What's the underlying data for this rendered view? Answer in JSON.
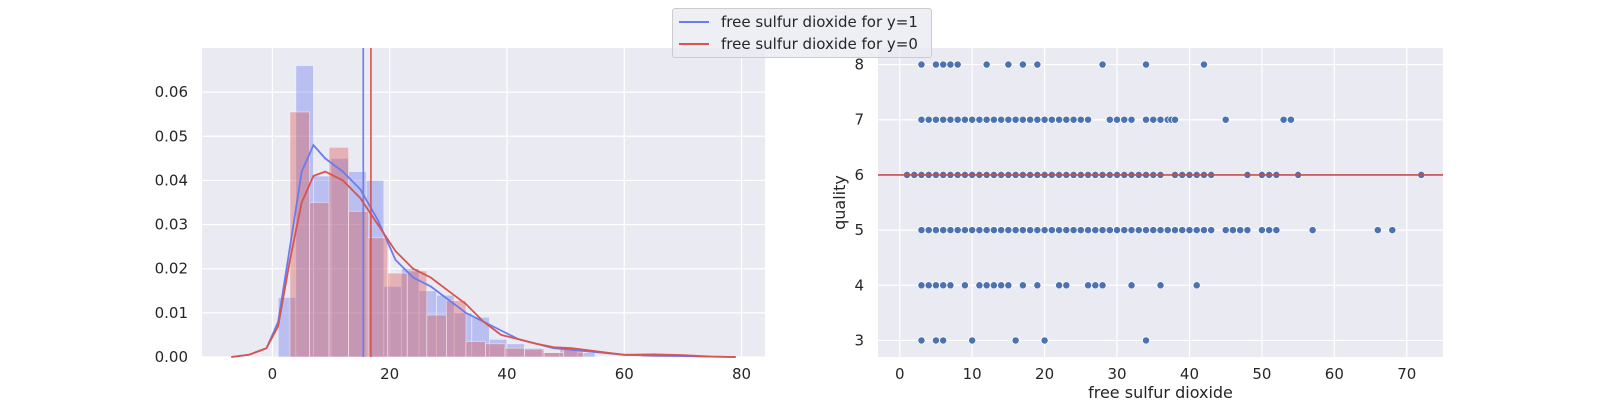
{
  "legend": {
    "items": [
      {
        "label": "free sulfur dioxide for y=1",
        "color": "#6a7cf0"
      },
      {
        "label": "free sulfur dioxide for y=0",
        "color": "#d9534f"
      }
    ]
  },
  "colors": {
    "plot_bg": "#eaeaf2",
    "grid": "#ffffff",
    "scatter": "#4c72b0"
  },
  "chart_data": [
    {
      "type": "bar",
      "subtype": "histogram-with-kde",
      "title": "",
      "xlabel": "",
      "ylabel": "",
      "xlim": [
        -12,
        84
      ],
      "ylim": [
        0,
        0.07
      ],
      "xticks": [
        0,
        20,
        40,
        60,
        80
      ],
      "yticks": [
        0.0,
        0.01,
        0.02,
        0.03,
        0.04,
        0.05,
        0.06
      ],
      "ytick_labels": [
        "0.00",
        "0.01",
        "0.02",
        "0.03",
        "0.04",
        "0.05",
        "0.06"
      ],
      "grid": true,
      "series": [
        {
          "name": "free sulfur dioxide for y=1",
          "color": "#6a7cf0",
          "bin_edges": [
            1,
            4,
            7,
            10,
            13,
            16,
            19,
            22,
            25,
            28,
            31,
            34,
            37,
            40,
            43,
            46,
            49,
            52,
            55
          ],
          "values": [
            0.0135,
            0.066,
            0.041,
            0.045,
            0.042,
            0.04,
            0.016,
            0.02,
            0.015,
            0.014,
            0.01,
            0.009,
            0.004,
            0.003,
            0.002,
            0.001,
            0.002,
            0.001
          ],
          "kde": [
            [
              -7,
              0
            ],
            [
              -4,
              0.0005
            ],
            [
              -1,
              0.002
            ],
            [
              1,
              0.008
            ],
            [
              3,
              0.025
            ],
            [
              5,
              0.042
            ],
            [
              7,
              0.048
            ],
            [
              9,
              0.045
            ],
            [
              12,
              0.042
            ],
            [
              15,
              0.038
            ],
            [
              18,
              0.031
            ],
            [
              21,
              0.022
            ],
            [
              24,
              0.018
            ],
            [
              27,
              0.016
            ],
            [
              30,
              0.013
            ],
            [
              33,
              0.01
            ],
            [
              36,
              0.008
            ],
            [
              39,
              0.006
            ],
            [
              42,
              0.004
            ],
            [
              45,
              0.003
            ],
            [
              48,
              0.002
            ],
            [
              52,
              0.0015
            ],
            [
              56,
              0.001
            ],
            [
              60,
              0.0005
            ],
            [
              65,
              0.0003
            ],
            [
              70,
              0.0002
            ],
            [
              75,
              0.0001
            ],
            [
              79,
              0
            ]
          ],
          "mean_line": 15.5
        },
        {
          "name": "free sulfur dioxide for y=0",
          "color": "#d9534f",
          "bin_edges": [
            3,
            6.33,
            9.67,
            13,
            16.33,
            19.67,
            23,
            26.33,
            29.67,
            33,
            36.33,
            39.67,
            43,
            46.33,
            49.67,
            53,
            56.33,
            59.67,
            63,
            66.33,
            69.67,
            73
          ],
          "values": [
            0.0555,
            0.035,
            0.0475,
            0.033,
            0.027,
            0.019,
            0.0195,
            0.0095,
            0.0128,
            0.0035,
            0.003,
            0.002,
            0.0018,
            0.001,
            0.0018,
            0,
            0,
            0,
            0.0005,
            0.0003,
            0.0002
          ],
          "kde": [
            [
              -7,
              0
            ],
            [
              -4,
              0.0005
            ],
            [
              -1,
              0.002
            ],
            [
              1,
              0.007
            ],
            [
              3,
              0.022
            ],
            [
              5,
              0.035
            ],
            [
              7,
              0.041
            ],
            [
              9,
              0.042
            ],
            [
              12,
              0.04
            ],
            [
              15,
              0.036
            ],
            [
              18,
              0.03
            ],
            [
              21,
              0.024
            ],
            [
              24,
              0.02
            ],
            [
              27,
              0.018
            ],
            [
              30,
              0.015
            ],
            [
              33,
              0.012
            ],
            [
              36,
              0.008
            ],
            [
              39,
              0.005
            ],
            [
              42,
              0.004
            ],
            [
              45,
              0.003
            ],
            [
              48,
              0.0022
            ],
            [
              51,
              0.002
            ],
            [
              54,
              0.0015
            ],
            [
              57,
              0.001
            ],
            [
              60,
              0.0005
            ],
            [
              65,
              0.0006
            ],
            [
              70,
              0.0004
            ],
            [
              75,
              0.0001
            ],
            [
              79,
              0
            ]
          ],
          "mean_line": 16.8
        }
      ]
    },
    {
      "type": "scatter",
      "title": "",
      "xlabel": "free sulfur dioxide",
      "ylabel": "quality",
      "xlim": [
        -3,
        75
      ],
      "ylim": [
        2.7,
        8.3
      ],
      "xticks": [
        0,
        10,
        20,
        30,
        40,
        50,
        60,
        70
      ],
      "yticks": [
        3,
        4,
        5,
        6,
        7,
        8
      ],
      "grid": true,
      "hline": 6,
      "hline_color": "#c44e52",
      "point_color": "#4c72b0",
      "rows": [
        {
          "y": 8,
          "x": [
            3,
            5,
            6,
            7,
            8,
            12,
            15,
            17,
            19,
            28,
            34,
            42
          ]
        },
        {
          "y": 7,
          "x": [
            3,
            4,
            5,
            6,
            7,
            8,
            9,
            10,
            11,
            12,
            13,
            14,
            15,
            16,
            17,
            18,
            19,
            20,
            21,
            22,
            23,
            24,
            25,
            26,
            29,
            30,
            31,
            32,
            34,
            35,
            36,
            37,
            37.5,
            38,
            45,
            53,
            54
          ]
        },
        {
          "y": 6,
          "x": [
            1,
            2,
            3,
            4,
            5,
            6,
            7,
            8,
            9,
            10,
            11,
            12,
            13,
            14,
            15,
            16,
            17,
            18,
            19,
            20,
            21,
            22,
            23,
            24,
            25,
            26,
            27,
            28,
            29,
            30,
            31,
            32,
            33,
            34,
            35,
            36,
            38,
            39,
            40,
            41,
            42,
            43,
            48,
            50,
            51,
            52,
            55,
            72
          ]
        },
        {
          "y": 5,
          "x": [
            3,
            4,
            5,
            6,
            7,
            8,
            9,
            10,
            11,
            12,
            13,
            14,
            15,
            16,
            17,
            18,
            19,
            20,
            21,
            22,
            23,
            24,
            25,
            26,
            27,
            28,
            29,
            30,
            31,
            32,
            33,
            34,
            35,
            36,
            37,
            38,
            39,
            40,
            41,
            42,
            43,
            45,
            46,
            47,
            48,
            50,
            51,
            52,
            57,
            66,
            68
          ]
        },
        {
          "y": 4,
          "x": [
            3,
            4,
            5,
            6,
            7,
            9,
            11,
            12,
            13,
            14,
            15,
            17,
            19,
            22,
            23,
            26,
            27,
            28,
            32,
            36,
            41
          ]
        },
        {
          "y": 3,
          "x": [
            3,
            5,
            6,
            10,
            16,
            20,
            34
          ]
        }
      ]
    }
  ]
}
